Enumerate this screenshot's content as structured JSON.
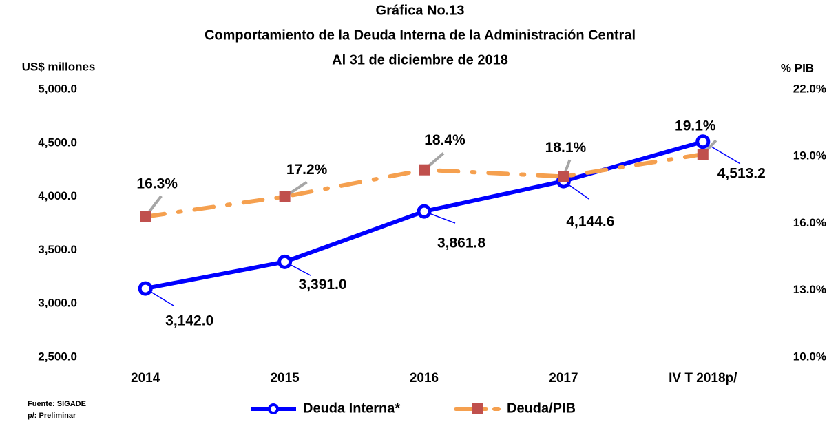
{
  "chart_data": {
    "type": "line",
    "title": [
      "Gráfica No.13",
      "Comportamiento de la Deuda Interna de la Administración Central",
      "Al 31 de diciembre de 2018"
    ],
    "y_label": "US$ millones",
    "y2_label": "% PIB",
    "notes": [
      "Fuente: SIGADE",
      "p/: Preliminar"
    ],
    "categories": [
      "2014",
      "2015",
      "2016",
      "2017",
      "IV T 2018p/"
    ],
    "series": [
      {
        "name": "Deuda Interna*",
        "color": "#0000ff",
        "values": [
          3142.0,
          3391.0,
          3861.8,
          4144.6,
          4513.2
        ],
        "value_labels": [
          "3,142.0",
          "3,391.0",
          "3,861.8",
          "4,144.6",
          "4,513.2"
        ]
      },
      {
        "name": "Deuda/PIB",
        "color": "#f5a04f",
        "marker_color": "#c0504d",
        "axis": "y2",
        "values": [
          16.3,
          17.2,
          18.4,
          18.1,
          19.1
        ],
        "value_labels": [
          "16.3%",
          "17.2%",
          "18.4%",
          "18.1%",
          "19.1%"
        ]
      }
    ],
    "ylim": [
      2500,
      5000
    ],
    "yticks": [
      {
        "value": 2500,
        "label": "2,500.0"
      },
      {
        "value": 3000,
        "label": "3,000.0"
      },
      {
        "value": 3500,
        "label": "3,500.0"
      },
      {
        "value": 4000,
        "label": "4,000.0"
      },
      {
        "value": 4500,
        "label": "4,500.0"
      },
      {
        "value": 5000,
        "label": "5,000.0"
      }
    ],
    "y2lim": [
      10,
      22
    ],
    "y2ticks": [
      {
        "value": 10,
        "label": "10.0%"
      },
      {
        "value": 13,
        "label": "13.0%"
      },
      {
        "value": 16,
        "label": "16.0%"
      },
      {
        "value": 19,
        "label": "19.0%"
      },
      {
        "value": 22,
        "label": "22.0%"
      }
    ]
  }
}
